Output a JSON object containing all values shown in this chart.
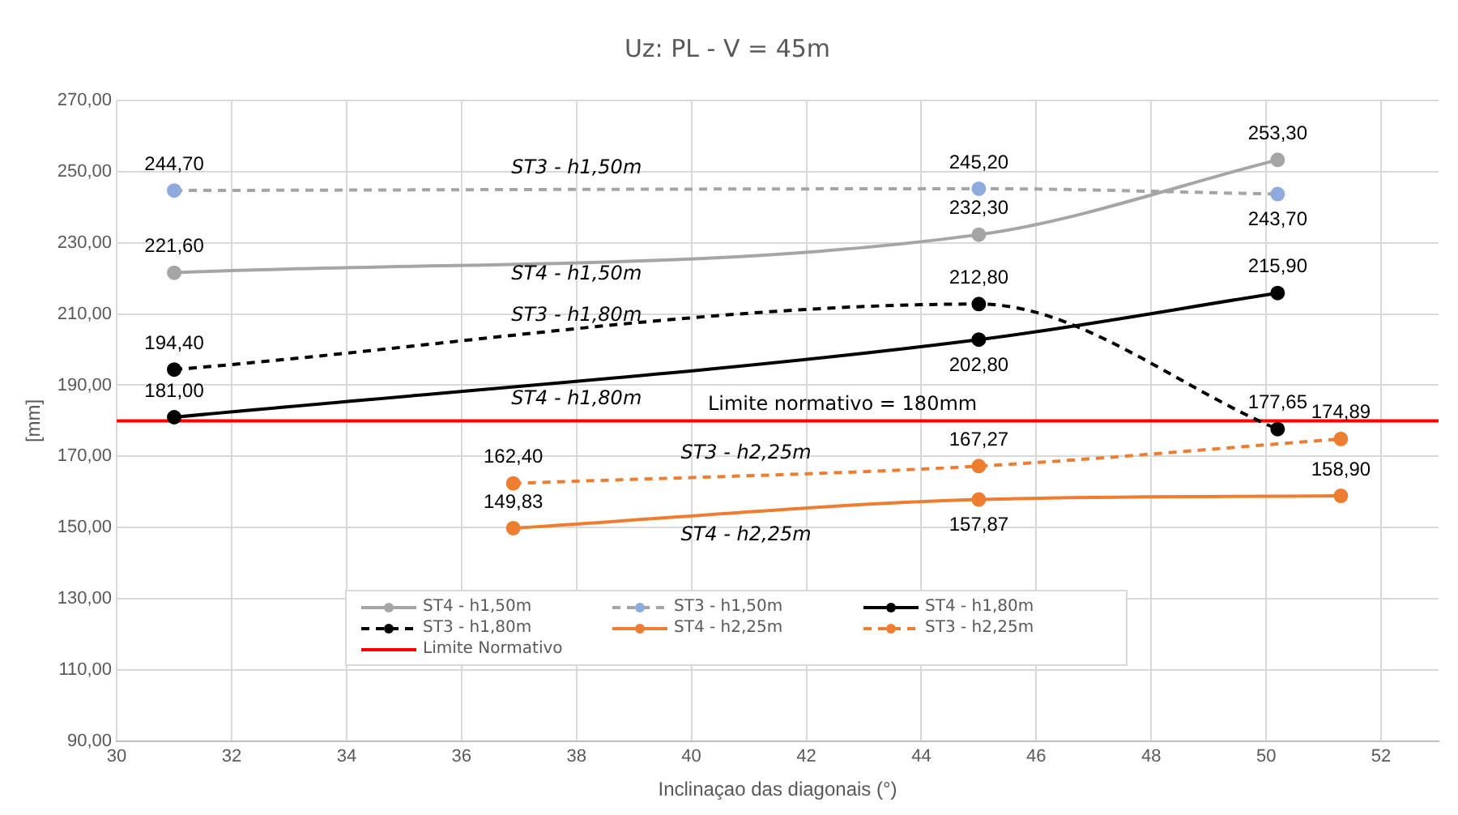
{
  "chart_data": {
    "type": "line",
    "title": "Uz: PL - V = 45m",
    "xlabel": "Inclinaçao das diagonais (°)",
    "ylabel": "[mm]",
    "xlim": [
      30,
      53
    ],
    "xticks": [
      30,
      32,
      34,
      36,
      38,
      40,
      42,
      44,
      46,
      48,
      50,
      52
    ],
    "ylim": [
      90,
      270
    ],
    "yticks": [
      {
        "value": 90,
        "label": "90,00"
      },
      {
        "value": 110,
        "label": "110,00"
      },
      {
        "value": 130,
        "label": "130,00"
      },
      {
        "value": 150,
        "label": "150,00"
      },
      {
        "value": 170,
        "label": "170,00"
      },
      {
        "value": 190,
        "label": "190,00"
      },
      {
        "value": 210,
        "label": "210,00"
      },
      {
        "value": 230,
        "label": "230,00"
      },
      {
        "value": 250,
        "label": "250,00"
      },
      {
        "value": 270,
        "label": "270,00"
      }
    ],
    "grid": true,
    "legend": "bottom",
    "marker": "circle",
    "line_style": "solid",
    "series": [
      {
        "name": "ST4 - h1,50m",
        "color": "#a5a5a5",
        "x": [
          31,
          45,
          50.2
        ],
        "values": [
          221.6,
          232.3,
          253.3
        ],
        "value_labels": [
          "221,60",
          "232,30",
          "253,30"
        ]
      },
      {
        "name": "ST3 - h1,50m",
        "color": "#a5a5a5",
        "colors": [
          "#8faadc",
          "#8faadc",
          "#8faadc"
        ],
        "line_style": "dashed",
        "x": [
          31,
          45,
          50.2
        ],
        "values": [
          244.7,
          245.2,
          243.7
        ],
        "value_labels": [
          "244,70",
          "245,20",
          "243,70"
        ]
      },
      {
        "name": "ST4 - h1,80m",
        "color": "#000000",
        "x": [
          31,
          45,
          50.2
        ],
        "values": [
          181.0,
          202.8,
          215.9
        ],
        "value_labels": [
          "181,00",
          "202,80",
          "215,90"
        ]
      },
      {
        "name": "ST3 - h1,80m",
        "color": "#000000",
        "line_style": "dashed",
        "x": [
          31,
          45,
          50.2
        ],
        "values": [
          194.4,
          212.8,
          177.65
        ],
        "value_labels": [
          "194,40",
          "212,80",
          "177,65"
        ]
      },
      {
        "name": "ST4 - h2,25m",
        "color": "#ed7d31",
        "x": [
          36.9,
          45,
          51.3
        ],
        "values": [
          149.83,
          157.87,
          158.9
        ],
        "value_labels": [
          "149,83",
          "157,87",
          "158,90"
        ]
      },
      {
        "name": "ST3 - h2,25m",
        "color": "#ed7d31",
        "line_style": "dashed",
        "x": [
          36.9,
          45,
          51.3
        ],
        "values": [
          162.4,
          167.27,
          174.89
        ],
        "value_labels": [
          "162,40",
          "167,27",
          "174,89"
        ]
      },
      {
        "name": "Limite Normativo",
        "color": "#ff0000",
        "marker": "none",
        "x": [
          30,
          53
        ],
        "values": [
          180,
          180
        ]
      }
    ],
    "annotations": [
      "Limite normativo = 180mm"
    ]
  }
}
